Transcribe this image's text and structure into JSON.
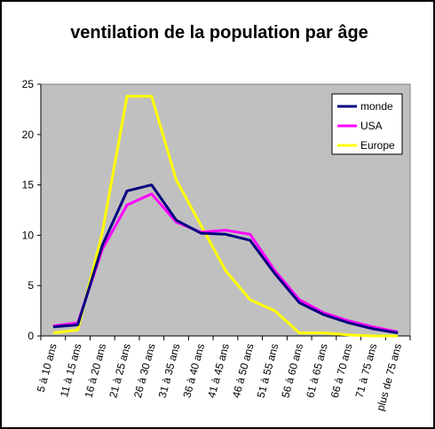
{
  "chart_data": {
    "type": "line",
    "title": "ventilation de la population par âge",
    "categories": [
      "5 à 10 ans",
      "11 à 15 ans",
      "16 à 20 ans",
      "21 à 25 ans",
      "26 à 30 ans",
      "31 à 35 ans",
      "36 à 40 ans",
      "41 à 45 ans",
      "46 à 50 ans",
      "51 à 55 ans",
      "56 à 60 ans",
      "61 à 65 ans",
      "66 à 70 ans",
      "71 à 75 ans",
      "plus de 75 ans"
    ],
    "ylim": [
      0,
      25
    ],
    "yticks": [
      0,
      5,
      10,
      15,
      20,
      25
    ],
    "grid": false,
    "plot_background": "#C0C0C0",
    "legend": "top-right",
    "series": [
      {
        "name": "monde",
        "color": "#000080",
        "values": [
          0.9,
          1.1,
          9.0,
          14.4,
          15.0,
          11.5,
          10.2,
          10.1,
          9.5,
          6.2,
          3.3,
          2.1,
          1.3,
          0.7,
          0.3
        ]
      },
      {
        "name": "USA",
        "color": "#FF00FF",
        "values": [
          1.0,
          1.3,
          8.6,
          13.0,
          14.1,
          11.3,
          10.3,
          10.5,
          10.1,
          6.5,
          3.6,
          2.3,
          1.5,
          0.9,
          0.4
        ]
      },
      {
        "name": "Europe",
        "color": "#FFFF00",
        "values": [
          0.3,
          0.6,
          10.3,
          23.8,
          23.8,
          15.5,
          11.0,
          6.5,
          3.6,
          2.5,
          0.3,
          0.3,
          0.1,
          0.0,
          0.0
        ]
      }
    ]
  }
}
